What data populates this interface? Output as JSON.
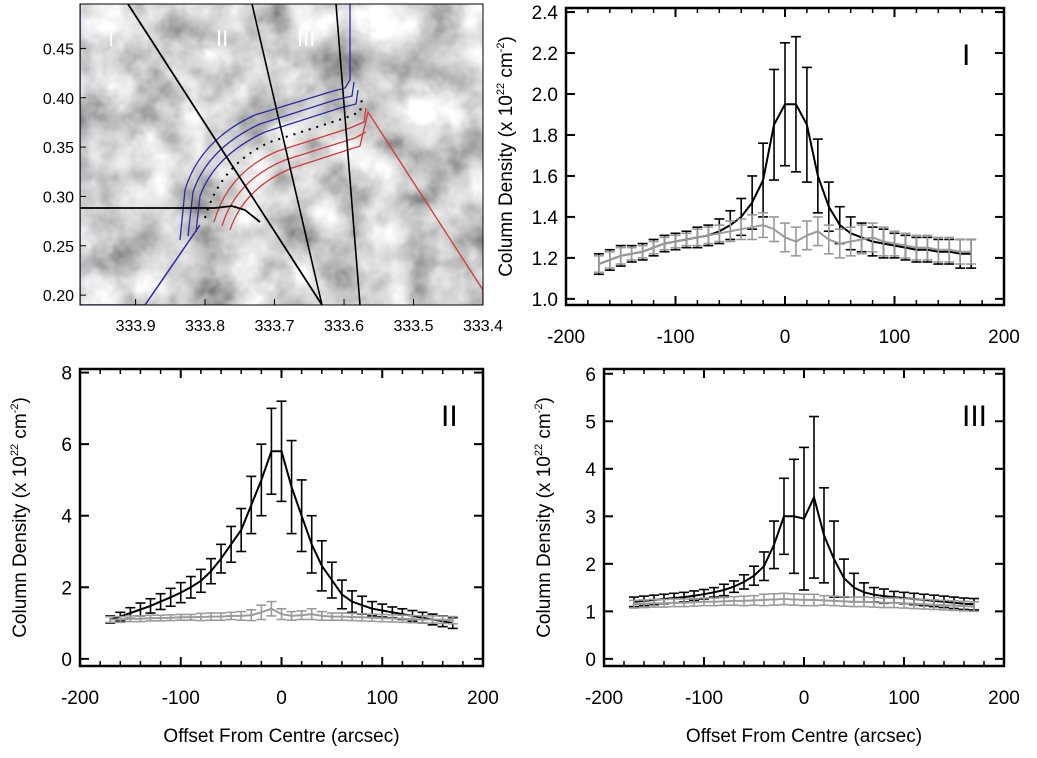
{
  "chart_data": [
    {
      "type": "image",
      "panel": "map",
      "x_ticks": [
        "333.9",
        "333.8",
        "333.7",
        "333.6",
        "333.5",
        "333.4"
      ],
      "y_ticks": [
        "0.45",
        "0.40",
        "0.35",
        "0.30",
        "0.25",
        "0.20"
      ],
      "xlim": [
        333.98,
        333.4
      ],
      "ylim": [
        0.19,
        0.495
      ],
      "region_labels": [
        "I",
        "II",
        "III"
      ],
      "contour_colors": [
        "#2a2aa8",
        "#d23a3a",
        "#000000"
      ]
    },
    {
      "type": "line",
      "panel": "I",
      "panel_label": "I",
      "xlabel": "",
      "ylabel": "Column Density (x 10",
      "ylabel_exp": "22",
      "ylabel_unit": " cm",
      "ylabel_unit_exp": "-2",
      "ylabel_close": ")",
      "xlim": [
        -200,
        200
      ],
      "ylim": [
        0.97,
        2.42
      ],
      "x_ticks": [
        "-200",
        "-100",
        "0",
        "100",
        "200"
      ],
      "y_ticks": [
        "1.0",
        "1.2",
        "1.4",
        "1.6",
        "1.8",
        "2.0",
        "2.2",
        "2.4"
      ],
      "y_tick_values": [
        1.0,
        1.2,
        1.4,
        1.6,
        1.8,
        2.0,
        2.2,
        2.4
      ],
      "series": [
        {
          "color": "#000000",
          "x": [
            -170,
            -160,
            -150,
            -140,
            -130,
            -120,
            -110,
            -100,
            -90,
            -80,
            -70,
            -60,
            -50,
            -40,
            -30,
            -20,
            -10,
            0,
            10,
            20,
            30,
            40,
            50,
            60,
            70,
            80,
            90,
            100,
            110,
            120,
            130,
            140,
            150,
            160,
            170
          ],
          "y": [
            1.17,
            1.19,
            1.21,
            1.22,
            1.23,
            1.25,
            1.27,
            1.28,
            1.29,
            1.3,
            1.31,
            1.33,
            1.36,
            1.4,
            1.47,
            1.58,
            1.85,
            1.95,
            1.95,
            1.85,
            1.6,
            1.45,
            1.36,
            1.32,
            1.3,
            1.28,
            1.27,
            1.26,
            1.25,
            1.24,
            1.24,
            1.23,
            1.23,
            1.22,
            1.22
          ],
          "err": [
            0.05,
            0.05,
            0.05,
            0.04,
            0.04,
            0.04,
            0.04,
            0.04,
            0.04,
            0.05,
            0.05,
            0.06,
            0.07,
            0.09,
            0.13,
            0.18,
            0.27,
            0.3,
            0.33,
            0.28,
            0.18,
            0.12,
            0.09,
            0.08,
            0.07,
            0.07,
            0.07,
            0.06,
            0.06,
            0.06,
            0.06,
            0.06,
            0.06,
            0.07,
            0.07
          ]
        },
        {
          "color": "#9a9a9a",
          "x": [
            -170,
            -160,
            -150,
            -140,
            -130,
            -120,
            -110,
            -100,
            -90,
            -80,
            -70,
            -60,
            -50,
            -40,
            -30,
            -20,
            -10,
            0,
            10,
            20,
            30,
            40,
            50,
            60,
            70,
            80,
            90,
            100,
            110,
            120,
            130,
            140,
            150,
            160,
            170
          ],
          "y": [
            1.17,
            1.19,
            1.21,
            1.22,
            1.23,
            1.25,
            1.27,
            1.28,
            1.29,
            1.3,
            1.31,
            1.32,
            1.33,
            1.34,
            1.35,
            1.36,
            1.34,
            1.3,
            1.28,
            1.31,
            1.33,
            1.29,
            1.27,
            1.28,
            1.29,
            1.3,
            1.28,
            1.27,
            1.26,
            1.25,
            1.25,
            1.24,
            1.24,
            1.23,
            1.23
          ],
          "err": [
            0.04,
            0.04,
            0.04,
            0.03,
            0.03,
            0.03,
            0.03,
            0.03,
            0.03,
            0.04,
            0.04,
            0.04,
            0.05,
            0.05,
            0.06,
            0.06,
            0.06,
            0.07,
            0.07,
            0.07,
            0.07,
            0.07,
            0.07,
            0.07,
            0.07,
            0.07,
            0.07,
            0.06,
            0.06,
            0.06,
            0.06,
            0.06,
            0.06,
            0.06,
            0.06
          ]
        }
      ]
    },
    {
      "type": "line",
      "panel": "II",
      "panel_label": "II",
      "xlabel": "Offset From Centre (arcsec)",
      "ylabel": "Column Density (x 10",
      "ylabel_exp": "22",
      "ylabel_unit": " cm",
      "ylabel_unit_exp": "-2",
      "ylabel_close": ")",
      "xlim": [
        -200,
        200
      ],
      "ylim": [
        -0.2,
        8.1
      ],
      "x_ticks": [
        "-200",
        "-100",
        "0",
        "100",
        "200"
      ],
      "y_ticks": [
        "0",
        "2",
        "4",
        "6",
        "8"
      ],
      "y_tick_values": [
        0,
        2,
        4,
        6,
        8
      ],
      "series": [
        {
          "color": "#000000",
          "x": [
            -170,
            -160,
            -150,
            -140,
            -130,
            -120,
            -110,
            -100,
            -90,
            -80,
            -70,
            -60,
            -50,
            -40,
            -30,
            -20,
            -10,
            0,
            10,
            20,
            30,
            40,
            50,
            60,
            70,
            80,
            90,
            100,
            110,
            120,
            130,
            140,
            150,
            160,
            170
          ],
          "y": [
            1.1,
            1.18,
            1.28,
            1.38,
            1.48,
            1.6,
            1.72,
            1.85,
            2.0,
            2.18,
            2.45,
            2.8,
            3.2,
            3.6,
            4.3,
            5.0,
            5.8,
            5.8,
            4.8,
            4.0,
            3.2,
            2.6,
            2.2,
            1.8,
            1.6,
            1.5,
            1.4,
            1.35,
            1.3,
            1.25,
            1.2,
            1.15,
            1.1,
            1.05,
            1.0
          ],
          "err": [
            0.1,
            0.12,
            0.15,
            0.18,
            0.2,
            0.22,
            0.25,
            0.28,
            0.3,
            0.32,
            0.35,
            0.4,
            0.5,
            0.6,
            0.8,
            1.0,
            1.2,
            1.4,
            1.3,
            1.0,
            0.8,
            0.7,
            0.5,
            0.4,
            0.3,
            0.25,
            0.2,
            0.18,
            0.15,
            0.15,
            0.15,
            0.15,
            0.15,
            0.15,
            0.15
          ]
        },
        {
          "color": "#9a9a9a",
          "x": [
            -170,
            -160,
            -150,
            -140,
            -130,
            -120,
            -110,
            -100,
            -90,
            -80,
            -70,
            -60,
            -50,
            -40,
            -30,
            -20,
            -10,
            0,
            10,
            20,
            30,
            40,
            50,
            60,
            70,
            80,
            90,
            100,
            110,
            120,
            130,
            140,
            150,
            160,
            170
          ],
          "y": [
            1.1,
            1.1,
            1.12,
            1.12,
            1.14,
            1.14,
            1.15,
            1.16,
            1.16,
            1.17,
            1.18,
            1.18,
            1.2,
            1.2,
            1.22,
            1.3,
            1.4,
            1.25,
            1.2,
            1.22,
            1.25,
            1.2,
            1.18,
            1.18,
            1.17,
            1.16,
            1.15,
            1.14,
            1.13,
            1.12,
            1.11,
            1.1,
            1.1,
            1.09,
            1.08
          ],
          "err": [
            0.08,
            0.08,
            0.08,
            0.08,
            0.08,
            0.08,
            0.08,
            0.08,
            0.08,
            0.1,
            0.1,
            0.1,
            0.1,
            0.12,
            0.15,
            0.2,
            0.2,
            0.15,
            0.12,
            0.12,
            0.15,
            0.12,
            0.1,
            0.1,
            0.1,
            0.1,
            0.1,
            0.1,
            0.1,
            0.1,
            0.1,
            0.1,
            0.1,
            0.1,
            0.1
          ]
        }
      ]
    },
    {
      "type": "line",
      "panel": "III",
      "panel_label": "III",
      "xlabel": "Offset From Centre (arcsec)",
      "ylabel": "Column Density (x 10",
      "ylabel_exp": "22",
      "ylabel_unit": " cm",
      "ylabel_unit_exp": "-2",
      "ylabel_close": ")",
      "xlim": [
        -200,
        200
      ],
      "ylim": [
        -0.15,
        6.1
      ],
      "x_ticks": [
        "-200",
        "-100",
        "0",
        "100",
        "200"
      ],
      "y_ticks": [
        "0",
        "1",
        "2",
        "3",
        "4",
        "5",
        "6"
      ],
      "y_tick_values": [
        0,
        1,
        2,
        3,
        4,
        5,
        6
      ],
      "series": [
        {
          "color": "#000000",
          "x": [
            -170,
            -160,
            -150,
            -140,
            -130,
            -120,
            -110,
            -100,
            -90,
            -80,
            -70,
            -60,
            -50,
            -40,
            -30,
            -20,
            -10,
            0,
            10,
            20,
            30,
            40,
            50,
            60,
            70,
            80,
            90,
            100,
            110,
            120,
            130,
            140,
            150,
            160,
            170
          ],
          "y": [
            1.2,
            1.22,
            1.24,
            1.26,
            1.28,
            1.3,
            1.33,
            1.36,
            1.4,
            1.45,
            1.52,
            1.62,
            1.75,
            1.95,
            2.4,
            3.0,
            3.0,
            2.95,
            3.4,
            2.6,
            2.1,
            1.7,
            1.5,
            1.4,
            1.35,
            1.32,
            1.3,
            1.28,
            1.26,
            1.24,
            1.22,
            1.2,
            1.18,
            1.16,
            1.15
          ],
          "err": [
            0.1,
            0.1,
            0.1,
            0.1,
            0.1,
            0.1,
            0.1,
            0.1,
            0.1,
            0.12,
            0.12,
            0.15,
            0.2,
            0.3,
            0.5,
            0.8,
            1.2,
            1.5,
            1.7,
            1.0,
            0.8,
            0.4,
            0.3,
            0.2,
            0.15,
            0.15,
            0.12,
            0.12,
            0.12,
            0.12,
            0.12,
            0.12,
            0.12,
            0.12,
            0.12
          ]
        },
        {
          "color": "#9a9a9a",
          "x": [
            -170,
            -160,
            -150,
            -140,
            -130,
            -120,
            -110,
            -100,
            -90,
            -80,
            -70,
            -60,
            -50,
            -40,
            -30,
            -20,
            -10,
            0,
            10,
            20,
            30,
            40,
            50,
            60,
            70,
            80,
            90,
            100,
            110,
            120,
            130,
            140,
            150,
            160,
            170
          ],
          "y": [
            1.15,
            1.16,
            1.17,
            1.17,
            1.18,
            1.18,
            1.19,
            1.2,
            1.2,
            1.21,
            1.22,
            1.22,
            1.23,
            1.24,
            1.25,
            1.26,
            1.25,
            1.24,
            1.24,
            1.23,
            1.22,
            1.21,
            1.2,
            1.2,
            1.19,
            1.18,
            1.18,
            1.17,
            1.16,
            1.15,
            1.14,
            1.13,
            1.12,
            1.11,
            1.1
          ],
          "err": [
            0.08,
            0.08,
            0.08,
            0.08,
            0.08,
            0.08,
            0.08,
            0.08,
            0.08,
            0.08,
            0.09,
            0.1,
            0.1,
            0.12,
            0.12,
            0.12,
            0.12,
            0.12,
            0.12,
            0.1,
            0.1,
            0.1,
            0.1,
            0.1,
            0.1,
            0.1,
            0.1,
            0.1,
            0.1,
            0.1,
            0.1,
            0.1,
            0.1,
            0.1,
            0.1
          ]
        }
      ]
    }
  ]
}
